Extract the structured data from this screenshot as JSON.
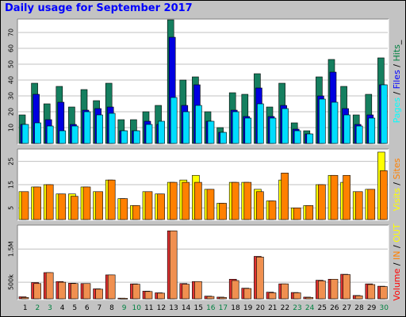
{
  "title": "Daily usage for September 2017",
  "chart_data": [
    {
      "type": "bar",
      "panel": "pages-files-hits",
      "y_ticks": [
        "10",
        "20",
        "30",
        "40",
        "50",
        "60",
        "70"
      ],
      "ylim": [
        0,
        78
      ],
      "grid": true,
      "right_label": [
        {
          "text": "Pages",
          "color": "#00ffff"
        },
        {
          "text": " / ",
          "color": "#000000"
        },
        {
          "text": "Files",
          "color": "#0000ff"
        },
        {
          "text": " / ",
          "color": "#000000"
        },
        {
          "text": "Hits",
          "color": "#008040"
        },
        {
          "text": "_",
          "color": "#000000"
        }
      ],
      "series": [
        {
          "color": "#157f5f",
          "values": [
            18,
            38,
            25,
            36,
            23,
            34,
            27,
            38,
            15,
            15,
            20,
            24,
            78,
            40,
            42,
            20,
            10,
            32,
            31,
            44,
            23,
            38,
            13,
            8,
            42,
            53,
            36,
            18,
            31,
            54
          ]
        },
        {
          "color": "#0000e0",
          "values": [
            12,
            31,
            15,
            26,
            12,
            21,
            22,
            23,
            8,
            8,
            14,
            12,
            67,
            24,
            37,
            14,
            7,
            21,
            17,
            35,
            17,
            24,
            9,
            6,
            30,
            45,
            22,
            12,
            18,
            37
          ]
        },
        {
          "color": "#00ddff",
          "values": [
            12,
            13,
            11,
            8,
            11,
            20,
            18,
            19,
            8,
            8,
            12,
            14,
            29,
            20,
            24,
            14,
            7,
            20,
            16,
            25,
            16,
            22,
            8,
            6,
            28,
            26,
            18,
            11,
            16,
            37
          ]
        }
      ]
    },
    {
      "type": "bar",
      "panel": "visits-sites",
      "y_ticks": [
        "5",
        "15",
        "25"
      ],
      "ylim": [
        0,
        30
      ],
      "grid": true,
      "right_label": [
        {
          "text": "Visits",
          "color": "#ffff00"
        },
        {
          "text": " / ",
          "color": "#000000"
        },
        {
          "text": "Sites",
          "color": "#ff8000"
        }
      ],
      "series": [
        {
          "color": "#ffff00",
          "values": [
            12,
            14,
            15,
            11,
            11,
            14,
            12,
            17,
            9,
            6,
            12,
            11,
            16,
            17,
            19,
            13,
            7,
            16,
            16,
            13,
            8,
            17,
            5,
            6,
            15,
            19,
            16,
            12,
            13,
            29
          ]
        },
        {
          "color": "#ff8000",
          "values": [
            12,
            14,
            15,
            11,
            10,
            14,
            12,
            17,
            9,
            6,
            12,
            11,
            16,
            16,
            16,
            13,
            7,
            16,
            16,
            12,
            8,
            20,
            5,
            6,
            15,
            19,
            19,
            12,
            13,
            21
          ]
        }
      ]
    },
    {
      "type": "bar",
      "panel": "kbytes",
      "y_ticks": [
        "500k",
        "1.5M"
      ],
      "ylim": [
        0,
        2200000
      ],
      "grid": true,
      "right_label": [
        {
          "text": "Volume",
          "color": "#ff0000"
        },
        {
          "text": " / ",
          "color": "#000000"
        },
        {
          "text": "IN",
          "color": "#ff8000"
        },
        {
          "text": " / ",
          "color": "#000000"
        },
        {
          "text": "OUT",
          "color": "#ffff00"
        }
      ],
      "series": [
        {
          "color": "#e03030",
          "values": [
            60000,
            490000,
            790000,
            520000,
            470000,
            460000,
            300000,
            720000,
            20000,
            450000,
            230000,
            180000,
            2050000,
            460000,
            520000,
            80000,
            50000,
            590000,
            320000,
            1280000,
            200000,
            450000,
            190000,
            50000,
            560000,
            590000,
            740000,
            100000,
            450000,
            380000
          ]
        },
        {
          "color": "#f09050",
          "values": [
            40000,
            460000,
            790000,
            500000,
            460000,
            460000,
            290000,
            720000,
            15000,
            440000,
            220000,
            170000,
            2050000,
            440000,
            520000,
            70000,
            40000,
            550000,
            310000,
            1260000,
            180000,
            450000,
            180000,
            40000,
            540000,
            590000,
            730000,
            90000,
            430000,
            370000
          ]
        }
      ]
    }
  ],
  "x_axis": [
    {
      "label": "1",
      "color": "#000000"
    },
    {
      "label": "2",
      "color": "#008040"
    },
    {
      "label": "3",
      "color": "#008040"
    },
    {
      "label": "4",
      "color": "#000000"
    },
    {
      "label": "5",
      "color": "#000000"
    },
    {
      "label": "6",
      "color": "#000000"
    },
    {
      "label": "7",
      "color": "#000000"
    },
    {
      "label": "8",
      "color": "#000000"
    },
    {
      "label": "9",
      "color": "#008040"
    },
    {
      "label": "10",
      "color": "#008040"
    },
    {
      "label": "11",
      "color": "#000000"
    },
    {
      "label": "12",
      "color": "#000000"
    },
    {
      "label": "13",
      "color": "#000000"
    },
    {
      "label": "14",
      "color": "#000000"
    },
    {
      "label": "15",
      "color": "#000000"
    },
    {
      "label": "16",
      "color": "#008040"
    },
    {
      "label": "17",
      "color": "#008040"
    },
    {
      "label": "18",
      "color": "#000000"
    },
    {
      "label": "19",
      "color": "#000000"
    },
    {
      "label": "20",
      "color": "#000000"
    },
    {
      "label": "21",
      "color": "#000000"
    },
    {
      "label": "22",
      "color": "#000000"
    },
    {
      "label": "23",
      "color": "#008040"
    },
    {
      "label": "24",
      "color": "#008040"
    },
    {
      "label": "25",
      "color": "#000000"
    },
    {
      "label": "26",
      "color": "#000000"
    },
    {
      "label": "27",
      "color": "#000000"
    },
    {
      "label": "28",
      "color": "#000000"
    },
    {
      "label": "29",
      "color": "#000000"
    },
    {
      "label": "30",
      "color": "#008040"
    }
  ],
  "colors": {
    "frame_bg": "#c3c3c3",
    "panel_bg": "#ffffff",
    "grid": "#c0c0c0",
    "axis_text": "#000000"
  }
}
